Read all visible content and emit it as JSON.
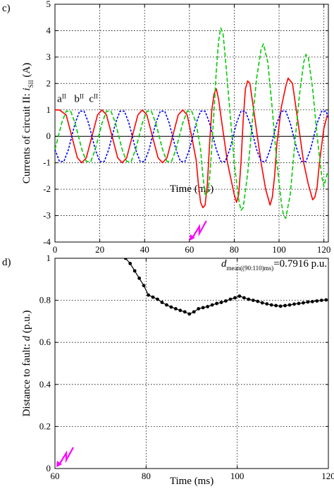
{
  "chart_data": [
    {
      "panel_label": "c)",
      "type": "line",
      "xlabel": "Time (ms)",
      "ylabel": "Currents of circuit II: ",
      "ylabel_sym": "i",
      "ylabel_sub": "SII",
      "ylabel_unit": " (A)",
      "xlim": [
        0,
        122
      ],
      "ylim": [
        -4,
        5
      ],
      "xticks": [
        0,
        20,
        40,
        60,
        80,
        100,
        120
      ],
      "yticks": [
        -4,
        -3,
        -2,
        -1,
        0,
        1,
        2,
        3,
        4,
        5
      ],
      "grid": true,
      "fault_time": 60,
      "fault_color": "#ff00ff",
      "phase_labels": [
        {
          "base": "a",
          "sup": "II",
          "x": 1,
          "y": 1.3
        },
        {
          "base": "b",
          "sup": "II",
          "x": 8.6,
          "y": 1.3
        },
        {
          "base": "c",
          "sup": "II",
          "x": 15.2,
          "y": 1.3
        }
      ],
      "series": [
        {
          "color": "#ff0000",
          "dash": "",
          "width": 1.6,
          "points": [
            [
              0,
              1.0
            ],
            [
              2,
              1.0
            ],
            [
              5,
              0.81
            ],
            [
              7.5,
              0
            ],
            [
              10,
              -0.81
            ],
            [
              12,
              -1.0
            ],
            [
              14,
              -0.81
            ],
            [
              16.5,
              0
            ],
            [
              19,
              0.81
            ],
            [
              21,
              1.0
            ],
            [
              23,
              0.81
            ],
            [
              25.5,
              0
            ],
            [
              28,
              -0.81
            ],
            [
              30,
              -1.0
            ],
            [
              32,
              -0.81
            ],
            [
              34.5,
              0
            ],
            [
              37,
              0.81
            ],
            [
              39,
              1.0
            ],
            [
              41,
              0.81
            ],
            [
              43.5,
              0
            ],
            [
              46,
              -0.81
            ],
            [
              48,
              -1.0
            ],
            [
              50,
              -0.81
            ],
            [
              52.5,
              0
            ],
            [
              55,
              0.81
            ],
            [
              57,
              1.0
            ],
            [
              59,
              0.81
            ],
            [
              61,
              0
            ],
            [
              63,
              -0.9
            ],
            [
              64,
              -1.8
            ],
            [
              65,
              -2.5
            ],
            [
              66,
              -2.7
            ],
            [
              67,
              -2.6
            ],
            [
              68,
              -1.8
            ],
            [
              69,
              -0.3
            ],
            [
              70,
              1.0
            ],
            [
              71,
              1.6
            ],
            [
              72,
              1.8
            ],
            [
              73,
              1.4
            ],
            [
              75,
              0.2
            ],
            [
              77,
              -1.0
            ],
            [
              79,
              -1.8
            ],
            [
              80,
              -2.2
            ],
            [
              81,
              -2.5
            ],
            [
              82,
              -2.2
            ],
            [
              83,
              -1.0
            ],
            [
              84,
              0.6
            ],
            [
              85,
              1.8
            ],
            [
              86,
              2.1
            ],
            [
              87,
              2.0
            ],
            [
              88,
              1.4
            ],
            [
              90,
              0.2
            ],
            [
              92,
              -1.0
            ],
            [
              94,
              -2.0
            ],
            [
              96,
              -2.6
            ],
            [
              97,
              -2.3
            ],
            [
              98,
              -1.5
            ],
            [
              99,
              -0.3
            ],
            [
              101,
              1.1
            ],
            [
              103,
              1.9
            ],
            [
              104,
              2.2
            ],
            [
              106,
              2.0
            ],
            [
              107,
              1.4
            ],
            [
              109,
              0.2
            ],
            [
              111,
              -1.0
            ],
            [
              113,
              -1.8
            ],
            [
              114,
              -2.1
            ],
            [
              115,
              -2.4
            ],
            [
              116,
              -2.3
            ],
            [
              117,
              -1.9
            ],
            [
              118,
              -1.0
            ],
            [
              120,
              0.3
            ],
            [
              121.5,
              0.8
            ]
          ]
        },
        {
          "color": "#0000ff",
          "dash": "3 2",
          "width": 1.6,
          "points": [
            [
              0,
              -0.5
            ],
            [
              2,
              -0.95
            ],
            [
              4,
              -0.95
            ],
            [
              6,
              -0.5
            ],
            [
              9,
              0.5
            ],
            [
              11,
              0.95
            ],
            [
              13,
              0.95
            ],
            [
              15,
              0.5
            ],
            [
              18,
              -0.5
            ],
            [
              20,
              -0.95
            ],
            [
              22,
              -0.95
            ],
            [
              24,
              -0.5
            ],
            [
              27,
              0.5
            ],
            [
              29,
              0.95
            ],
            [
              31,
              0.95
            ],
            [
              33,
              0.5
            ],
            [
              36,
              -0.5
            ],
            [
              38,
              -0.95
            ],
            [
              40,
              -0.95
            ],
            [
              42,
              -0.5
            ],
            [
              45,
              0.5
            ],
            [
              47,
              0.95
            ],
            [
              49,
              0.95
            ],
            [
              51,
              0.5
            ],
            [
              54,
              -0.5
            ],
            [
              56,
              -0.95
            ],
            [
              58,
              -0.95
            ],
            [
              60,
              -0.5
            ],
            [
              63,
              0.5
            ],
            [
              65,
              0.95
            ],
            [
              67,
              0.95
            ],
            [
              69,
              0.5
            ],
            [
              72,
              -0.5
            ],
            [
              74,
              -0.95
            ],
            [
              76,
              -0.95
            ],
            [
              78,
              -0.5
            ],
            [
              81,
              0.5
            ],
            [
              83,
              0.95
            ],
            [
              85,
              0.95
            ],
            [
              87,
              0.5
            ],
            [
              90,
              -0.5
            ],
            [
              92,
              -0.95
            ],
            [
              94,
              -0.95
            ],
            [
              96,
              -0.5
            ],
            [
              99,
              0.5
            ],
            [
              101,
              0.95
            ],
            [
              103,
              0.95
            ],
            [
              105,
              0.5
            ],
            [
              108,
              -0.5
            ],
            [
              110,
              -0.95
            ],
            [
              112,
              -0.95
            ],
            [
              114,
              -0.5
            ],
            [
              117,
              0.5
            ],
            [
              119,
              0.95
            ],
            [
              121,
              0.95
            ],
            [
              122,
              0.7
            ]
          ]
        },
        {
          "color": "#00cc00",
          "dash": "6 3",
          "width": 1.6,
          "points": [
            [
              0,
              -0.5
            ],
            [
              3,
              0.5
            ],
            [
              5,
              0.95
            ],
            [
              7,
              0.95
            ],
            [
              9,
              0.5
            ],
            [
              12,
              -0.5
            ],
            [
              14,
              -0.95
            ],
            [
              16,
              -0.95
            ],
            [
              18,
              -0.5
            ],
            [
              21,
              0.5
            ],
            [
              23,
              0.95
            ],
            [
              25,
              0.95
            ],
            [
              27,
              0.5
            ],
            [
              30,
              -0.5
            ],
            [
              32,
              -0.95
            ],
            [
              34,
              -0.95
            ],
            [
              36,
              -0.5
            ],
            [
              39,
              0.5
            ],
            [
              41,
              0.95
            ],
            [
              43,
              0.95
            ],
            [
              45,
              0.5
            ],
            [
              48,
              -0.5
            ],
            [
              50,
              -0.95
            ],
            [
              52,
              -0.95
            ],
            [
              54,
              -0.5
            ],
            [
              57,
              0.5
            ],
            [
              59,
              0.95
            ],
            [
              61,
              0.95
            ],
            [
              63,
              0.5
            ],
            [
              65,
              -0.5
            ],
            [
              66,
              -1.5
            ],
            [
              67,
              -2.2
            ],
            [
              68,
              -2.2
            ],
            [
              69,
              -1.6
            ],
            [
              70,
              -0.4
            ],
            [
              71,
              1.0
            ],
            [
              72,
              2.5
            ],
            [
              73,
              3.6
            ],
            [
              74,
              4.1
            ],
            [
              75,
              3.9
            ],
            [
              76,
              3.0
            ],
            [
              78,
              1.0
            ],
            [
              80,
              -1.0
            ],
            [
              82,
              -2.4
            ],
            [
              83,
              -2.8
            ],
            [
              84,
              -2.7
            ],
            [
              86,
              -1.4
            ],
            [
              88,
              0.5
            ],
            [
              90,
              2.2
            ],
            [
              92,
              3.3
            ],
            [
              93,
              3.5
            ],
            [
              95,
              2.8
            ],
            [
              97,
              1.0
            ],
            [
              99,
              -1.0
            ],
            [
              101,
              -2.5
            ],
            [
              102,
              -3.0
            ],
            [
              103,
              -3.1
            ],
            [
              105,
              -2.2
            ],
            [
              107,
              -0.3
            ],
            [
              109,
              1.5
            ],
            [
              111,
              2.8
            ],
            [
              112,
              3.1
            ],
            [
              113,
              3.0
            ],
            [
              115,
              1.8
            ],
            [
              117,
              0.0
            ],
            [
              119,
              -1.5
            ],
            [
              120,
              -1.9
            ],
            [
              121.5,
              -1.4
            ]
          ]
        }
      ]
    },
    {
      "panel_label": "d)",
      "type": "line",
      "xlabel": "Time (ms)",
      "ylabel": "Distance to fault: ",
      "ylabel_sym": "d",
      "ylabel_unit": " (p.u.)",
      "xlim": [
        60,
        120
      ],
      "ylim": [
        0,
        1
      ],
      "xticks": [
        60,
        80,
        100,
        120
      ],
      "yticks": [
        0,
        0.2,
        0.4,
        0.6,
        0.8,
        1
      ],
      "ytick_labels": [
        "0",
        "0.2",
        "0.4",
        "0.6",
        "0.8",
        "1"
      ],
      "grid": true,
      "fault_time": 60,
      "fault_color": "#ff00ff",
      "annotation": {
        "sym": "d",
        "sub": "mean((90:110)ms)",
        "text": "=0.7916 p.u."
      },
      "series": [
        {
          "color": "#000000",
          "marker": "circle",
          "points": [
            [
              75.5,
              1.0
            ],
            [
              76.5,
              0.975
            ],
            [
              77.5,
              0.94
            ],
            [
              78.5,
              0.905
            ],
            [
              79.5,
              0.87
            ],
            [
              80.5,
              0.825
            ],
            [
              81.5,
              0.815
            ],
            [
              82.5,
              0.805
            ],
            [
              83.5,
              0.79
            ],
            [
              84.5,
              0.778
            ],
            [
              85.5,
              0.768
            ],
            [
              86.5,
              0.76
            ],
            [
              87.5,
              0.752
            ],
            [
              88.5,
              0.745
            ],
            [
              89.5,
              0.735
            ],
            [
              90.5,
              0.745
            ],
            [
              91.5,
              0.76
            ],
            [
              92.5,
              0.765
            ],
            [
              93.5,
              0.77
            ],
            [
              94.5,
              0.778
            ],
            [
              95.5,
              0.785
            ],
            [
              96.5,
              0.79
            ],
            [
              97.5,
              0.797
            ],
            [
              98.5,
              0.805
            ],
            [
              99.5,
              0.812
            ],
            [
              100.5,
              0.82
            ],
            [
              101.5,
              0.812
            ],
            [
              102.5,
              0.805
            ],
            [
              103.5,
              0.8
            ],
            [
              104.5,
              0.795
            ],
            [
              105.5,
              0.788
            ],
            [
              106.5,
              0.783
            ],
            [
              107.5,
              0.778
            ],
            [
              108.5,
              0.775
            ],
            [
              109.5,
              0.772
            ],
            [
              110.5,
              0.775
            ],
            [
              111.5,
              0.778
            ],
            [
              112.5,
              0.782
            ],
            [
              113.5,
              0.785
            ],
            [
              114.5,
              0.788
            ],
            [
              115.5,
              0.792
            ],
            [
              116.5,
              0.794
            ],
            [
              117.5,
              0.797
            ],
            [
              118.5,
              0.8
            ],
            [
              119.5,
              0.802
            ]
          ]
        }
      ]
    }
  ]
}
